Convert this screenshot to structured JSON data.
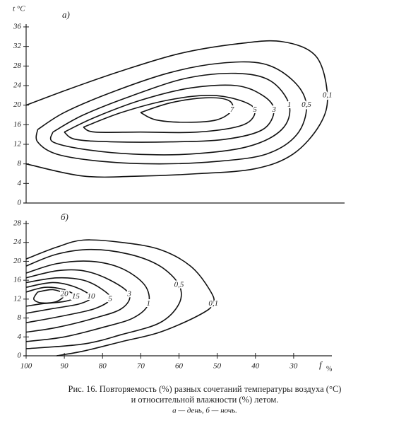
{
  "chart_data": [
    {
      "type": "contour",
      "panel_label": "а)",
      "y_label": "t °C",
      "xlim": [
        100,
        16.5
      ],
      "ylim": [
        0,
        36
      ],
      "yticks": [
        0,
        4,
        8,
        12,
        16,
        20,
        24,
        28,
        32,
        36
      ],
      "contours": [
        {
          "level": 0.1,
          "label": "0,1",
          "x": [
            100,
            88,
            75,
            60,
            45,
            33,
            24,
            21,
            23,
            30,
            40,
            55,
            70,
            85,
            100
          ],
          "y": [
            20,
            23.5,
            27,
            30.5,
            32.5,
            33,
            30,
            22,
            16,
            10,
            7,
            6,
            5.5,
            5.5,
            8
          ]
        },
        {
          "level": 0.5,
          "label": "0,5",
          "x": [
            97,
            90,
            78,
            63,
            50,
            38,
            30,
            26.5,
            29,
            37,
            50,
            65,
            80,
            92,
            97,
            97
          ],
          "y": [
            15,
            18.5,
            22.5,
            26.5,
            28.5,
            28.5,
            25,
            20,
            14,
            10,
            8.5,
            8,
            8.5,
            10,
            12.5,
            15
          ]
        },
        {
          "level": 1,
          "x": [
            93,
            85,
            72,
            58,
            45,
            36,
            31,
            33,
            42,
            57,
            72,
            85,
            93,
            93
          ],
          "y": [
            14.5,
            18,
            22,
            25.5,
            26.5,
            25,
            20,
            15,
            11.5,
            10,
            10,
            11,
            12.5,
            14.5
          ]
        },
        {
          "level": 3,
          "x": [
            90,
            82,
            70,
            57,
            45,
            38,
            35,
            38,
            48,
            62,
            77,
            87,
            90
          ],
          "y": [
            14.5,
            17.5,
            21,
            23.5,
            24,
            22,
            19,
            15,
            13,
            12.5,
            12.5,
            13,
            14.5
          ]
        },
        {
          "level": 5,
          "x": [
            85,
            75,
            63,
            52,
            44,
            40,
            43,
            55,
            70,
            82,
            85
          ],
          "y": [
            15.5,
            18.5,
            21,
            22,
            21,
            19,
            16,
            14.5,
            14.5,
            14.5,
            15.5
          ]
        },
        {
          "level": 7,
          "x": [
            70,
            62,
            53,
            47,
            46,
            50,
            58,
            66,
            70
          ],
          "y": [
            18.5,
            20.5,
            21.5,
            21,
            19,
            17,
            16.5,
            17,
            18.5
          ]
        }
      ]
    },
    {
      "type": "contour",
      "panel_label": "б)",
      "x_label": "f",
      "x_unit": "%",
      "xlim": [
        100,
        20
      ],
      "ylim": [
        0,
        28
      ],
      "yticks": [
        0,
        4,
        8,
        12,
        16,
        20,
        24,
        28
      ],
      "xticks": [
        100,
        90,
        80,
        70,
        60,
        50,
        40,
        30
      ],
      "contours": [
        {
          "level": 0.1,
          "label": "0,1",
          "x": [
            100,
            92,
            85,
            75,
            65,
            57,
            52,
            51,
            55,
            65,
            75,
            85,
            92
          ],
          "y": [
            20.5,
            23,
            24.5,
            24,
            22.5,
            19,
            14,
            11,
            8.5,
            5,
            3,
            1,
            0
          ]
        },
        {
          "level": 0.5,
          "label": "0,5",
          "x": [
            100,
            92,
            83,
            73,
            65,
            60,
            60,
            65,
            75,
            85,
            100
          ],
          "y": [
            19,
            21.5,
            22.5,
            21.5,
            19,
            15,
            11,
            7,
            4.5,
            2.5,
            1.5
          ]
        },
        {
          "level": 1,
          "x": [
            100,
            92,
            83,
            75,
            69,
            68,
            72,
            80,
            90,
            100
          ],
          "y": [
            17.5,
            19.5,
            20,
            18.5,
            15,
            11,
            8,
            6,
            4,
            3
          ]
        },
        {
          "level": 3,
          "x": [
            100,
            92,
            85,
            78,
            73,
            75,
            82,
            92,
            100
          ],
          "y": [
            16.5,
            18,
            18,
            16,
            13,
            10,
            8,
            6,
            5
          ]
        },
        {
          "level": 5,
          "x": [
            100,
            92,
            85,
            80,
            78,
            82,
            90,
            100
          ],
          "y": [
            15.5,
            16.5,
            16,
            14,
            12,
            10,
            8.5,
            7
          ]
        },
        {
          "level": 10,
          "x": [
            100,
            93,
            87,
            83,
            86,
            93,
            100
          ],
          "y": [
            14.5,
            15.5,
            14.5,
            12.5,
            11,
            10,
            9
          ]
        },
        {
          "level": 15,
          "x": [
            100,
            95,
            90,
            87,
            90,
            96,
            100
          ],
          "y": [
            13.5,
            14.5,
            14,
            12.5,
            11.5,
            11,
            10.5
          ]
        },
        {
          "level": 20,
          "x": [
            97,
            93,
            90,
            92,
            96,
            98,
            97
          ],
          "y": [
            13.5,
            14,
            13,
            11.5,
            11.2,
            12,
            13.5
          ]
        }
      ]
    }
  ],
  "caption": {
    "line1": "Рис. 16. Повторяемость (%) разных сочетаний температуры воздуха (°С)",
    "line2": "и относительной влажности (%) летом.",
    "line3": "а — день, б — ночь."
  }
}
